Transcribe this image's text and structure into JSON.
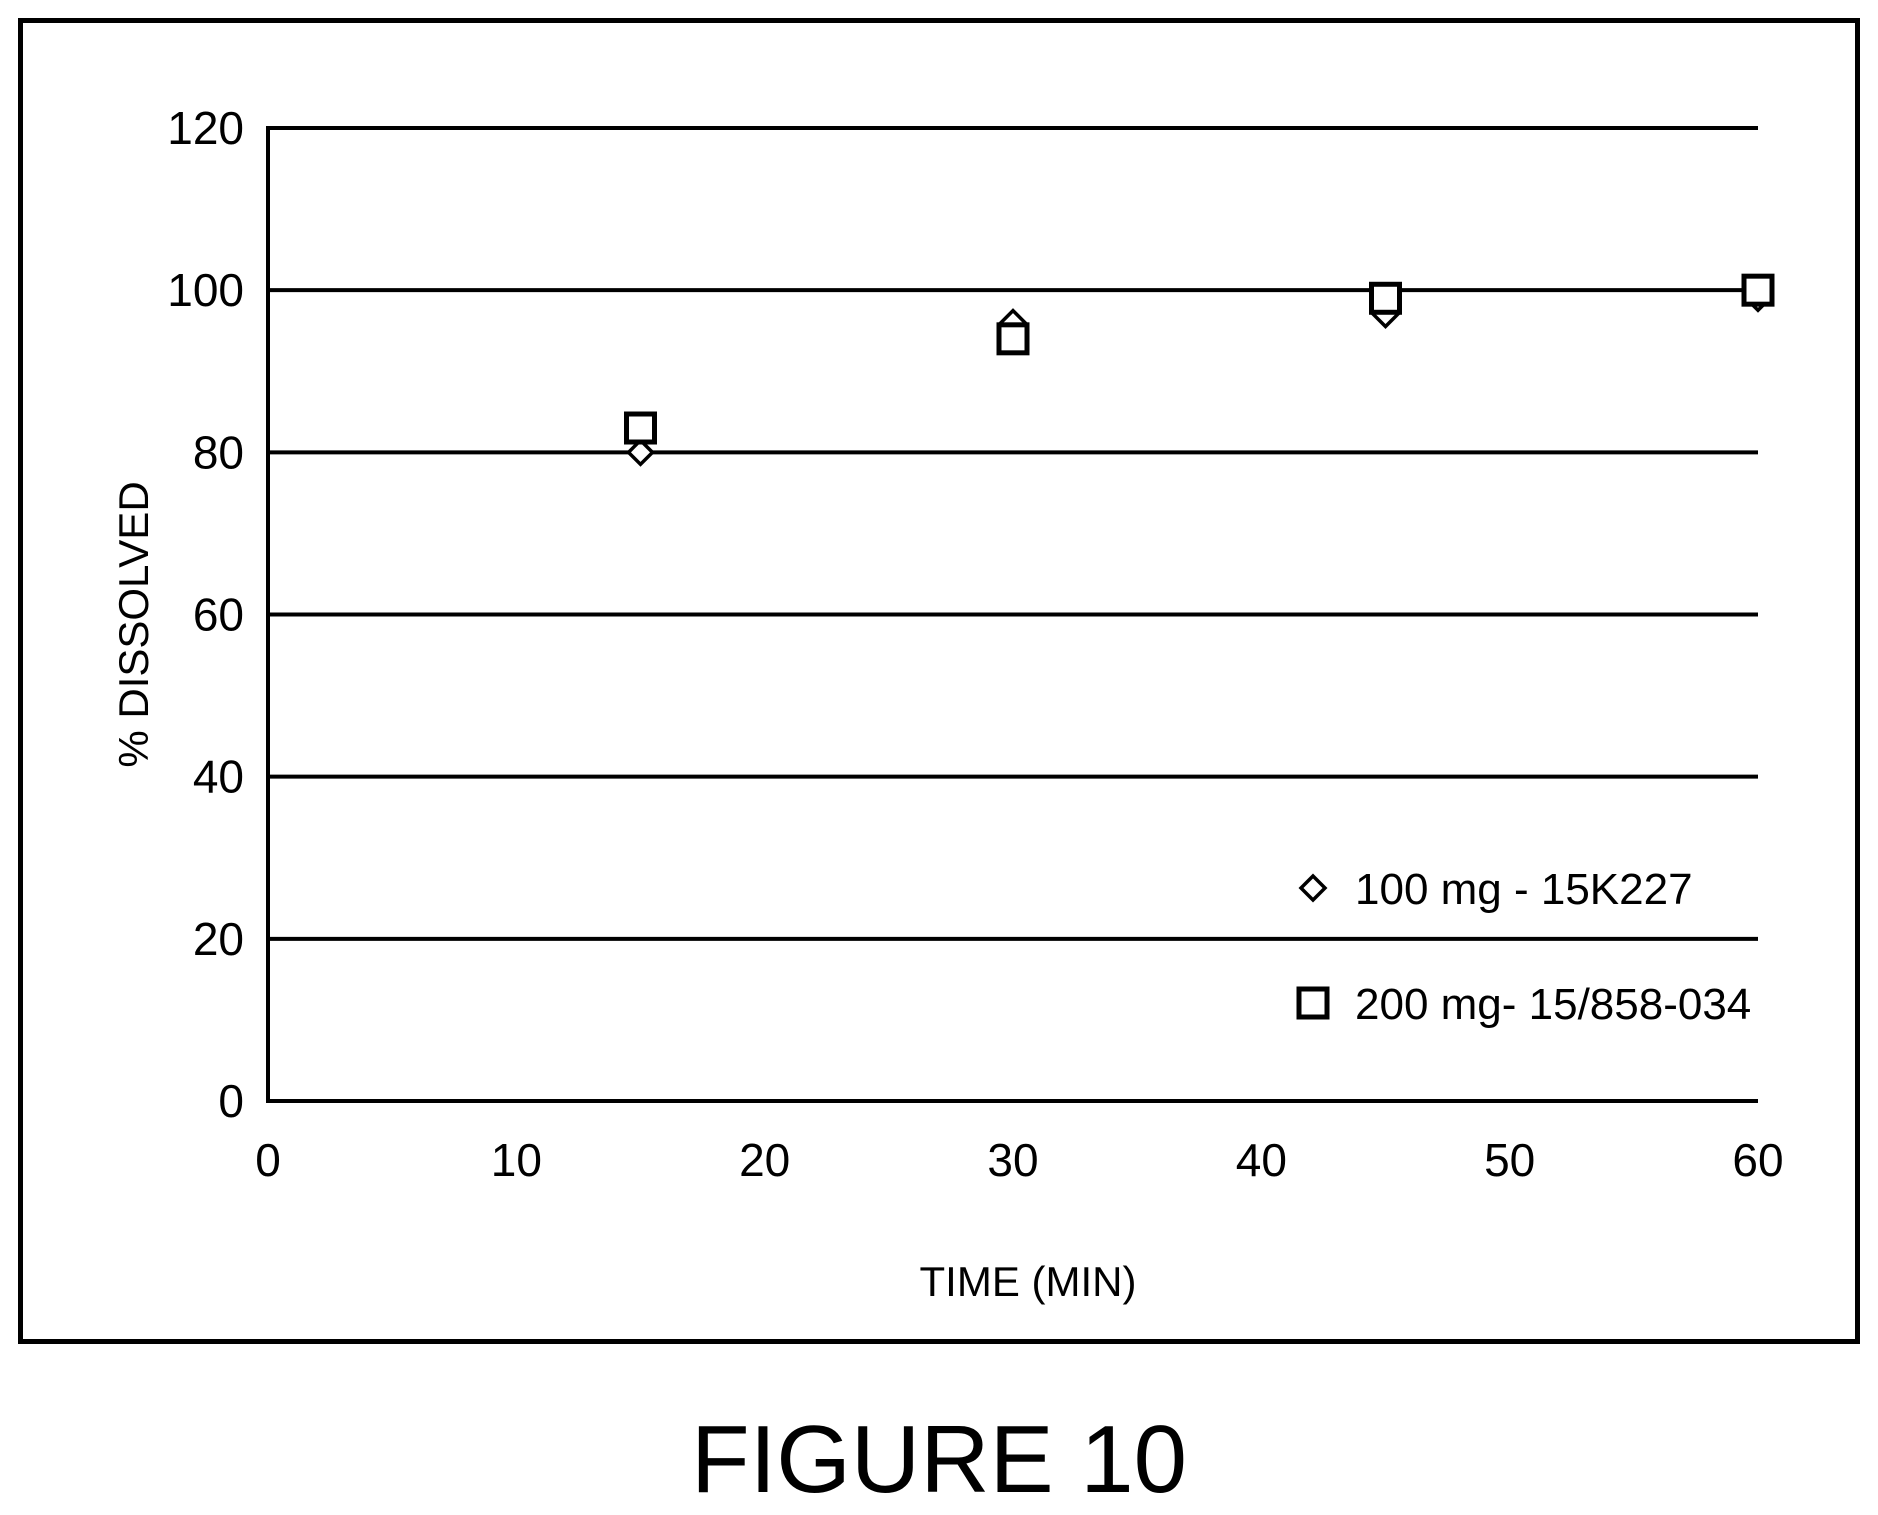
{
  "caption": "FIGURE 10",
  "chart_data": {
    "type": "scatter",
    "xlabel": "TIME (MIN)",
    "ylabel": "% DISSOLVED",
    "xlim": [
      0,
      60
    ],
    "ylim": [
      0,
      120
    ],
    "xticks": [
      "0",
      "10",
      "20",
      "30",
      "40",
      "50",
      "60"
    ],
    "yticks": [
      "0",
      "20",
      "40",
      "60",
      "80",
      "100",
      "120"
    ],
    "grid": "horizontal",
    "legend_position": "lower-right",
    "series": [
      {
        "name": "100 mg - 15K227",
        "marker": "diamond",
        "color": "#000000",
        "x": [
          15,
          30,
          45,
          60
        ],
        "y": [
          80,
          96,
          97,
          99
        ]
      },
      {
        "name": "200 mg- 15/858-034",
        "marker": "square",
        "color": "#000000",
        "x": [
          15,
          30,
          45,
          60
        ],
        "y": [
          83,
          94,
          99,
          100
        ]
      }
    ]
  }
}
